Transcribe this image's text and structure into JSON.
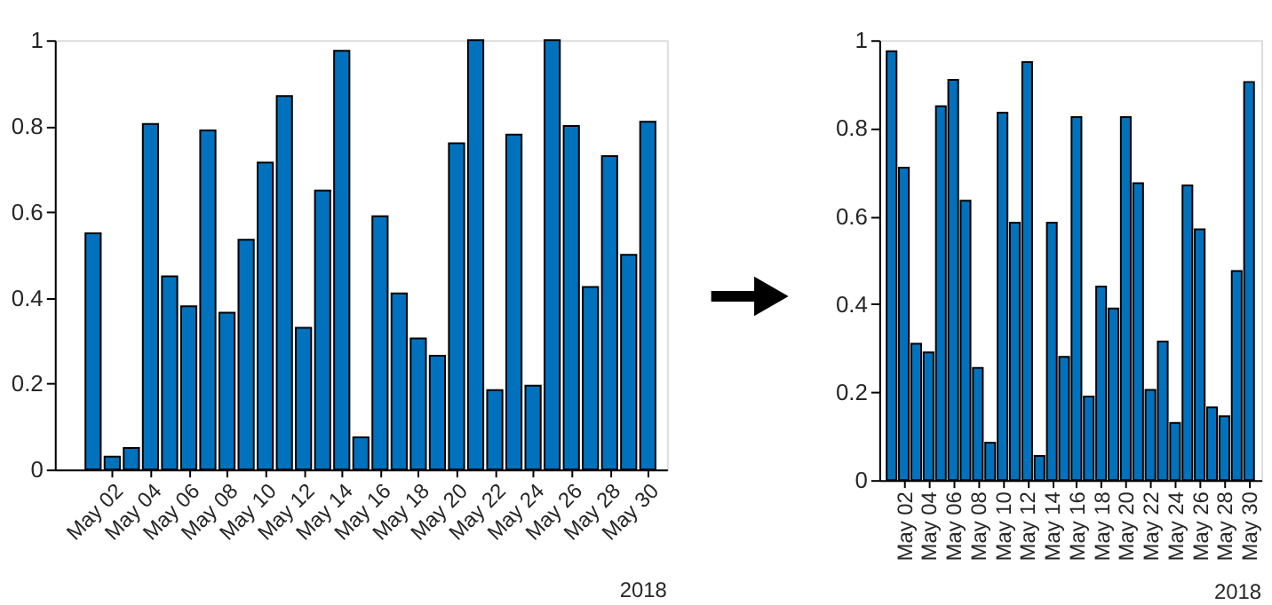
{
  "chart_data": [
    {
      "type": "bar",
      "x": [
        "2018-05-01",
        "2018-05-02",
        "2018-05-03",
        "2018-05-04",
        "2018-05-05",
        "2018-05-06",
        "2018-05-07",
        "2018-05-08",
        "2018-05-09",
        "2018-05-10",
        "2018-05-11",
        "2018-05-12",
        "2018-05-13",
        "2018-05-14",
        "2018-05-15",
        "2018-05-16",
        "2018-05-17",
        "2018-05-18",
        "2018-05-19",
        "2018-05-20",
        "2018-05-21",
        "2018-05-22",
        "2018-05-23",
        "2018-05-24",
        "2018-05-25",
        "2018-05-26",
        "2018-05-27",
        "2018-05-28",
        "2018-05-29",
        "2018-05-30"
      ],
      "values": [
        0.55,
        0.03,
        0.05,
        0.805,
        0.45,
        0.38,
        0.79,
        0.365,
        0.535,
        0.715,
        0.87,
        0.33,
        0.65,
        0.975,
        0.075,
        0.59,
        0.41,
        0.305,
        0.265,
        0.76,
        1.0,
        0.185,
        0.78,
        0.195,
        1.0,
        0.8,
        0.425,
        0.73,
        0.5,
        0.81
      ],
      "color": "#0072bd",
      "xlim": [
        "2018-04-29",
        "2018-05-31"
      ],
      "xticks": [
        {
          "value": "2018-05-02",
          "label": "May 02"
        },
        {
          "value": "2018-05-04",
          "label": "May 04"
        },
        {
          "value": "2018-05-06",
          "label": "May 06"
        },
        {
          "value": "2018-05-08",
          "label": "May 08"
        },
        {
          "value": "2018-05-10",
          "label": "May 10"
        },
        {
          "value": "2018-05-12",
          "label": "May 12"
        },
        {
          "value": "2018-05-14",
          "label": "May 14"
        },
        {
          "value": "2018-05-16",
          "label": "May 16"
        },
        {
          "value": "2018-05-18",
          "label": "May 18"
        },
        {
          "value": "2018-05-20",
          "label": "May 20"
        },
        {
          "value": "2018-05-22",
          "label": "May 22"
        },
        {
          "value": "2018-05-24",
          "label": "May 24"
        },
        {
          "value": "2018-05-26",
          "label": "May 26"
        },
        {
          "value": "2018-05-28",
          "label": "May 28"
        },
        {
          "value": "2018-05-30",
          "label": "May 30"
        }
      ],
      "ylim": [
        0,
        1
      ],
      "yticks": [
        0,
        0.2,
        0.4,
        0.6,
        0.8,
        1
      ],
      "annotations": [
        "2018"
      ],
      "grid": false
    },
    {
      "type": "bar",
      "x": [
        "2018-05-01",
        "2018-05-02",
        "2018-05-03",
        "2018-05-04",
        "2018-05-05",
        "2018-05-06",
        "2018-05-07",
        "2018-05-08",
        "2018-05-09",
        "2018-05-10",
        "2018-05-11",
        "2018-05-12",
        "2018-05-13",
        "2018-05-14",
        "2018-05-15",
        "2018-05-16",
        "2018-05-17",
        "2018-05-18",
        "2018-05-19",
        "2018-05-20",
        "2018-05-21",
        "2018-05-22",
        "2018-05-23",
        "2018-05-24",
        "2018-05-25",
        "2018-05-26",
        "2018-05-27",
        "2018-05-28",
        "2018-05-29",
        "2018-05-30"
      ],
      "values": [
        0.975,
        0.71,
        0.31,
        0.29,
        0.85,
        0.91,
        0.635,
        0.255,
        0.085,
        0.835,
        0.585,
        0.95,
        0.055,
        0.585,
        0.28,
        0.825,
        0.19,
        0.44,
        0.39,
        0.825,
        0.675,
        0.205,
        0.315,
        0.13,
        0.67,
        0.57,
        0.165,
        0.145,
        0.475,
        0.905
      ],
      "color": "#0072bd",
      "xlim": [
        "2018-04-30",
        "2018-05-31"
      ],
      "xticks": [
        {
          "value": "2018-05-02",
          "label": "May 02"
        },
        {
          "value": "2018-05-04",
          "label": "May 04"
        },
        {
          "value": "2018-05-06",
          "label": "May 06"
        },
        {
          "value": "2018-05-08",
          "label": "May 08"
        },
        {
          "value": "2018-05-10",
          "label": "May 10"
        },
        {
          "value": "2018-05-12",
          "label": "May 12"
        },
        {
          "value": "2018-05-14",
          "label": "May 14"
        },
        {
          "value": "2018-05-16",
          "label": "May 16"
        },
        {
          "value": "2018-05-18",
          "label": "May 18"
        },
        {
          "value": "2018-05-20",
          "label": "May 20"
        },
        {
          "value": "2018-05-22",
          "label": "May 22"
        },
        {
          "value": "2018-05-24",
          "label": "May 24"
        },
        {
          "value": "2018-05-26",
          "label": "May 26"
        },
        {
          "value": "2018-05-28",
          "label": "May 28"
        },
        {
          "value": "2018-05-30",
          "label": "May 30"
        }
      ],
      "ylim": [
        0,
        1
      ],
      "yticks": [
        0,
        0.2,
        0.4,
        0.6,
        0.8,
        1
      ],
      "annotations": [
        "2018"
      ],
      "grid": false
    }
  ]
}
